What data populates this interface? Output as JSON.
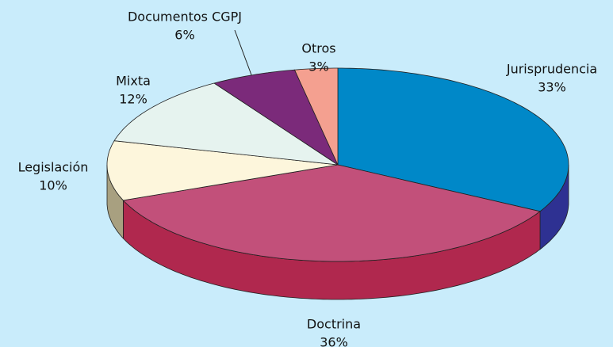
{
  "chart_data": {
    "type": "pie3d",
    "categories": [
      "Jurisprudencia",
      "Doctrina",
      "Legislación",
      "Mixta",
      "Documentos CGPJ",
      "Otros"
    ],
    "values": [
      33,
      36,
      10,
      12,
      6,
      3
    ],
    "value_labels": [
      "33%",
      "36%",
      "10%",
      "12%",
      "6%",
      "3%"
    ],
    "colors": [
      "#0088c8",
      "#c2507a",
      "#fdf6dc",
      "#e6f3ef",
      "#7b2a7a",
      "#f4a090"
    ],
    "side_colors": [
      "#2e3192",
      "#b0284e",
      "#a8a080",
      "#b8c8c0",
      "#5a1a5a",
      "#c87060"
    ]
  }
}
